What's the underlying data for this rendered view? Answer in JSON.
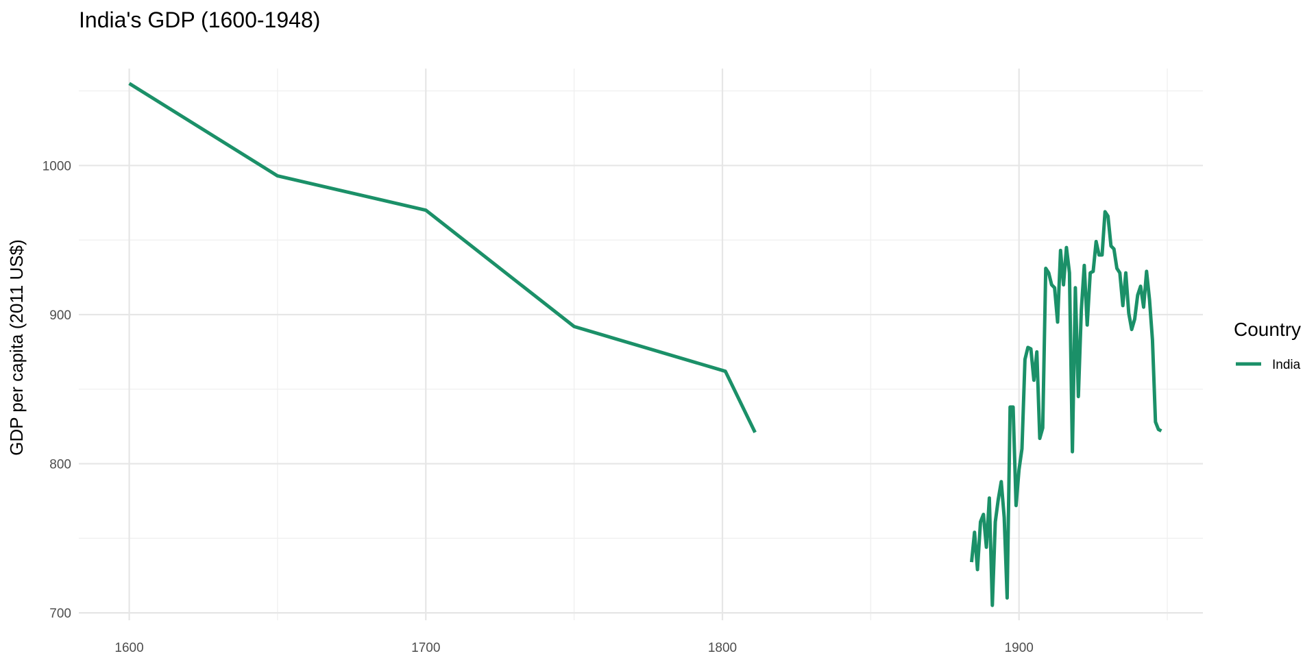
{
  "chart_data": {
    "type": "line",
    "title": "India's GDP (1600-1948)",
    "xlabel": "",
    "ylabel": "GDP per capita (2011 US$)",
    "xlim": [
      1583,
      1962
    ],
    "ylim": [
      695,
      1065
    ],
    "x_ticks": [
      1600,
      1700,
      1800,
      1900
    ],
    "x_minor": [
      1650,
      1750,
      1850,
      1950
    ],
    "y_ticks": [
      700,
      800,
      900,
      1000
    ],
    "y_minor": [
      750,
      850,
      950,
      1050
    ],
    "grid": true,
    "legend": {
      "title": "Country",
      "placement": "right"
    },
    "series": [
      {
        "name": "India",
        "color": "#1b9068",
        "segments": [
          [
            [
              1600,
              1055
            ],
            [
              1650,
              993
            ],
            [
              1700,
              970
            ],
            [
              1750,
              892
            ],
            [
              1801,
              862
            ],
            [
              1811,
              821
            ]
          ],
          [
            [
              1884,
              734
            ],
            [
              1885,
              754
            ],
            [
              1886,
              729
            ],
            [
              1887,
              761
            ],
            [
              1888,
              766
            ],
            [
              1889,
              744
            ],
            [
              1890,
              777
            ],
            [
              1891,
              705
            ],
            [
              1892,
              761
            ],
            [
              1893,
              776
            ],
            [
              1894,
              788
            ],
            [
              1895,
              764
            ],
            [
              1896,
              710
            ],
            [
              1897,
              838
            ],
            [
              1898,
              838
            ],
            [
              1899,
              772
            ],
            [
              1900,
              796
            ],
            [
              1901,
              810
            ],
            [
              1902,
              870
            ],
            [
              1903,
              878
            ],
            [
              1904,
              877
            ],
            [
              1905,
              856
            ],
            [
              1906,
              875
            ],
            [
              1907,
              817
            ],
            [
              1908,
              824
            ],
            [
              1909,
              931
            ],
            [
              1910,
              928
            ],
            [
              1911,
              920
            ],
            [
              1912,
              918
            ],
            [
              1913,
              895
            ],
            [
              1914,
              943
            ],
            [
              1915,
              920
            ],
            [
              1916,
              945
            ],
            [
              1917,
              928
            ],
            [
              1918,
              808
            ],
            [
              1919,
              918
            ],
            [
              1920,
              845
            ],
            [
              1921,
              903
            ],
            [
              1922,
              933
            ],
            [
              1923,
              893
            ],
            [
              1924,
              928
            ],
            [
              1925,
              929
            ],
            [
              1926,
              949
            ],
            [
              1927,
              940
            ],
            [
              1928,
              940
            ],
            [
              1929,
              969
            ],
            [
              1930,
              966
            ],
            [
              1931,
              946
            ],
            [
              1932,
              944
            ],
            [
              1933,
              931
            ],
            [
              1934,
              928
            ],
            [
              1935,
              906
            ],
            [
              1936,
              928
            ],
            [
              1937,
              901
            ],
            [
              1938,
              890
            ],
            [
              1939,
              897
            ],
            [
              1940,
              913
            ],
            [
              1941,
              919
            ],
            [
              1942,
              905
            ],
            [
              1943,
              929
            ],
            [
              1944,
              910
            ],
            [
              1945,
              883
            ],
            [
              1946,
              828
            ],
            [
              1947,
              823
            ],
            [
              1948,
              822
            ]
          ]
        ]
      }
    ]
  }
}
